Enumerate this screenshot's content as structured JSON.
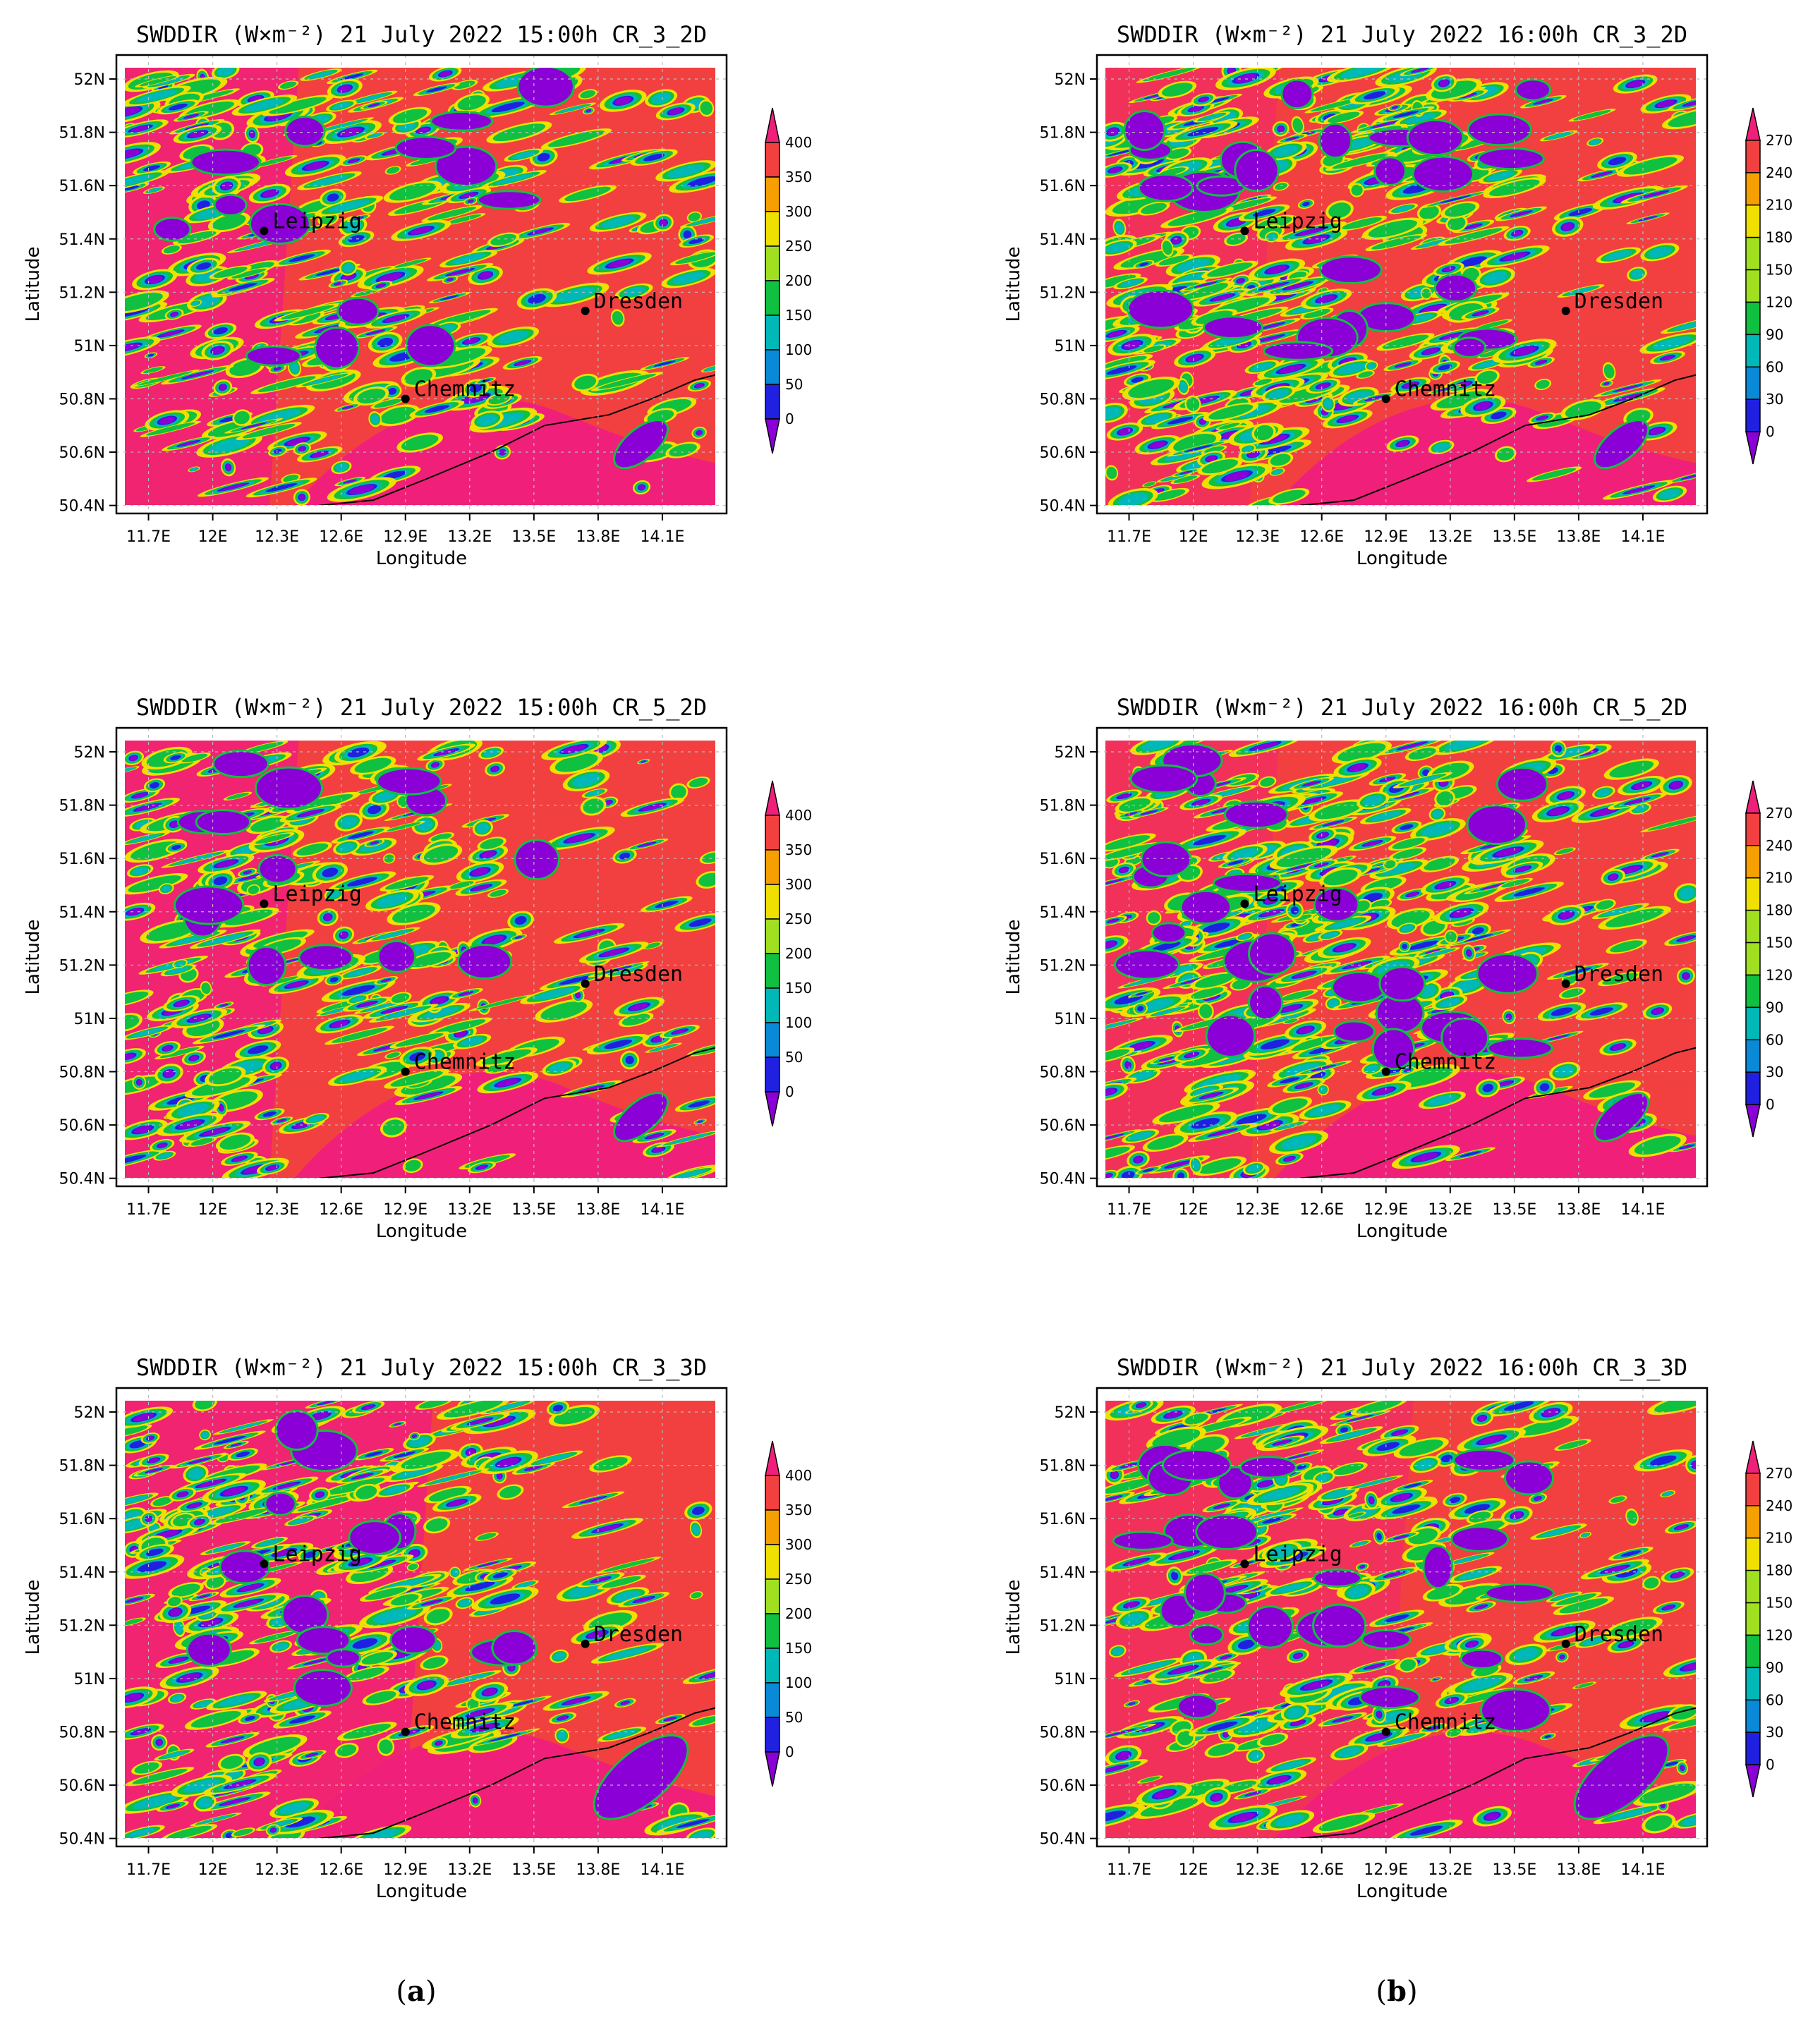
{
  "units_title": "SWDDIR (W×m⁻²)",
  "axes": {
    "xlabel": "Longitude",
    "ylabel": "Latitude",
    "x_ticks": [
      "11.7E",
      "12E",
      "12.3E",
      "12.6E",
      "12.9E",
      "13.2E",
      "13.5E",
      "13.8E",
      "14.1E"
    ],
    "y_ticks": [
      "52N",
      "51.8N",
      "51.6N",
      "51.4N",
      "51.2N",
      "51N",
      "50.8N",
      "50.6N",
      "50.4N"
    ],
    "lon_range": [
      11.55,
      14.4
    ],
    "lat_range": [
      50.37,
      52.09
    ]
  },
  "cities": [
    {
      "name": "Leipzig",
      "lon": 12.24,
      "lat": 51.43
    },
    {
      "name": "Dresden",
      "lon": 13.74,
      "lat": 51.13
    },
    {
      "name": "Chemnitz",
      "lon": 12.9,
      "lat": 50.8
    }
  ],
  "colorbar_a": {
    "labels": [
      "400",
      "350",
      "300",
      "250",
      "200",
      "150",
      "100",
      "50",
      "0"
    ]
  },
  "colorbar_b": {
    "labels": [
      "270",
      "240",
      "210",
      "180",
      "150",
      "120",
      "90",
      "60",
      "30",
      "0"
    ]
  },
  "colors": {
    "class_colors": [
      "#8a00d6",
      "#2020e0",
      "#0a8ad6",
      "#00b8b8",
      "#10c040",
      "#a0e020",
      "#f0e000",
      "#f5a000",
      "#f24040",
      "#f0207a"
    ],
    "border": "#000000",
    "grid": "#bbbbbb"
  },
  "panels": [
    {
      "title": "SWDDIR (W×m⁻²) 21 July 2022 15:00h CR_3_2D",
      "column": "a",
      "row": 0
    },
    {
      "title": "SWDDIR (W×m⁻²) 21 July 2022 16:00h CR_3_2D",
      "column": "b",
      "row": 0
    },
    {
      "title": "SWDDIR (W×m⁻²) 21 July 2022 15:00h CR_5_2D",
      "column": "a",
      "row": 1
    },
    {
      "title": "SWDDIR (W×m⁻²) 21 July 2022 16:00h CR_5_2D",
      "column": "b",
      "row": 1
    },
    {
      "title": "SWDDIR (W×m⁻²) 21 July 2022 15:00h CR_3_3D",
      "column": "a",
      "row": 2
    },
    {
      "title": "SWDDIR (W×m⁻²) 21 July 2022 16:00h CR_3_3D",
      "column": "b",
      "row": 2
    }
  ],
  "captions": {
    "a": "a",
    "b": "b"
  }
}
